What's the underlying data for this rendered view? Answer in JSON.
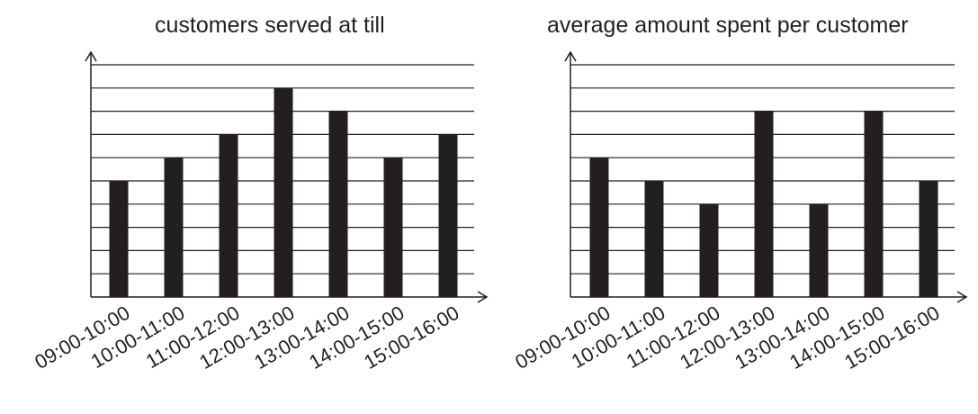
{
  "chart_data": [
    {
      "type": "bar",
      "title": "customers served at till",
      "categories": [
        "09:00-10:00",
        "10:00-11:00",
        "11:00-12:00",
        "12:00-13:00",
        "13:00-14:00",
        "14:00-15:00",
        "15:00-16:00"
      ],
      "values": [
        5,
        6,
        7,
        9,
        8,
        6,
        7
      ],
      "xlabel": "",
      "ylabel": "",
      "ylim": [
        0,
        10
      ],
      "grid": true,
      "bar_color": "#231f20"
    },
    {
      "type": "bar",
      "title": "average amount spent per customer",
      "categories": [
        "09:00-10:00",
        "10:00-11:00",
        "11:00-12:00",
        "12:00-13:00",
        "13:00-14:00",
        "14:00-15:00",
        "15:00-16:00"
      ],
      "values": [
        6,
        5,
        4,
        8,
        4,
        8,
        5
      ],
      "xlabel": "",
      "ylabel": "",
      "ylim": [
        0,
        10
      ],
      "grid": true,
      "bar_color": "#231f20"
    }
  ]
}
